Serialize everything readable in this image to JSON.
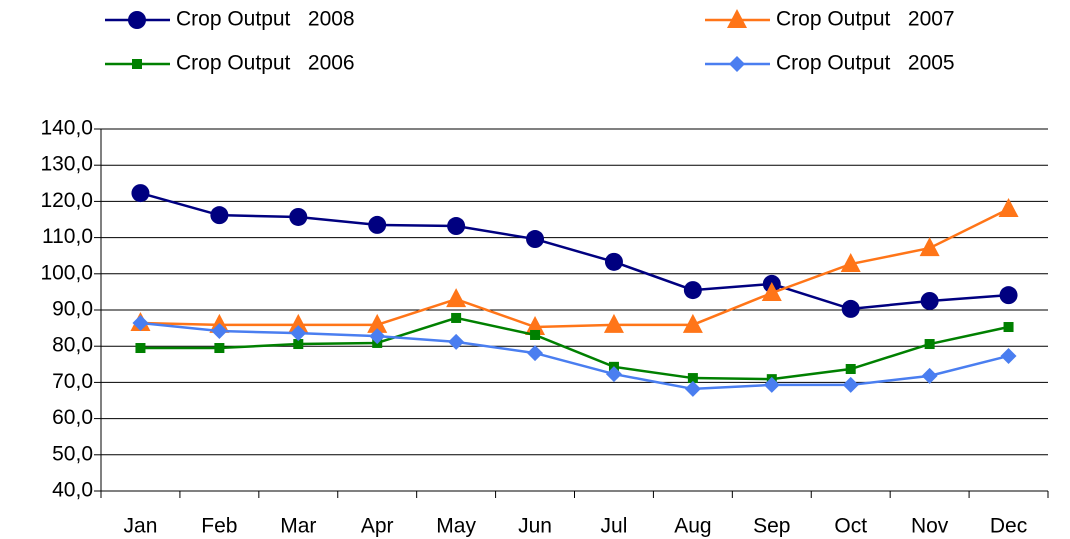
{
  "chart_data": {
    "type": "line",
    "categories": [
      "Jan",
      "Feb",
      "Mar",
      "Apr",
      "May",
      "Jun",
      "Jul",
      "Aug",
      "Sep",
      "Oct",
      "Nov",
      "Dec"
    ],
    "series": [
      {
        "name": "Crop Output   2008",
        "color": "#000080",
        "marker": "circle",
        "values": [
          122.3,
          116.2,
          115.7,
          113.5,
          113.2,
          109.6,
          103.3,
          95.5,
          97.2,
          90.3,
          92.5,
          94.1
        ]
      },
      {
        "name": "Crop Output   2007",
        "color": "#ff7518",
        "marker": "triangle",
        "values": [
          86.4,
          85.9,
          85.9,
          85.9,
          93.0,
          85.3,
          85.9,
          85.9,
          94.7,
          102.7,
          107.1,
          117.9
        ]
      },
      {
        "name": "Crop Output   2006",
        "color": "#008000",
        "marker": "square",
        "values": [
          79.5,
          79.5,
          80.6,
          80.9,
          87.8,
          83.1,
          74.3,
          71.2,
          70.9,
          73.7,
          80.6,
          85.3
        ]
      },
      {
        "name": "Crop Output   2005",
        "color": "#4a7ef0",
        "marker": "diamond",
        "values": [
          86.4,
          84.2,
          83.6,
          82.8,
          81.2,
          78.1,
          72.3,
          68.2,
          69.3,
          69.3,
          71.8,
          77.3
        ]
      }
    ],
    "ylim": [
      40,
      140
    ],
    "yticks": [
      {
        "value": 40,
        "label": "40,0"
      },
      {
        "value": 50,
        "label": "50,0"
      },
      {
        "value": 60,
        "label": "60,0"
      },
      {
        "value": 70,
        "label": "70,0"
      },
      {
        "value": 80,
        "label": "80,0"
      },
      {
        "value": 90,
        "label": "90,0"
      },
      {
        "value": 100,
        "label": "100,0"
      },
      {
        "value": 110,
        "label": "110,0"
      },
      {
        "value": 120,
        "label": "120,0"
      },
      {
        "value": 130,
        "label": "130,0"
      },
      {
        "value": 140,
        "label": "140,0"
      }
    ],
    "grid": true
  }
}
